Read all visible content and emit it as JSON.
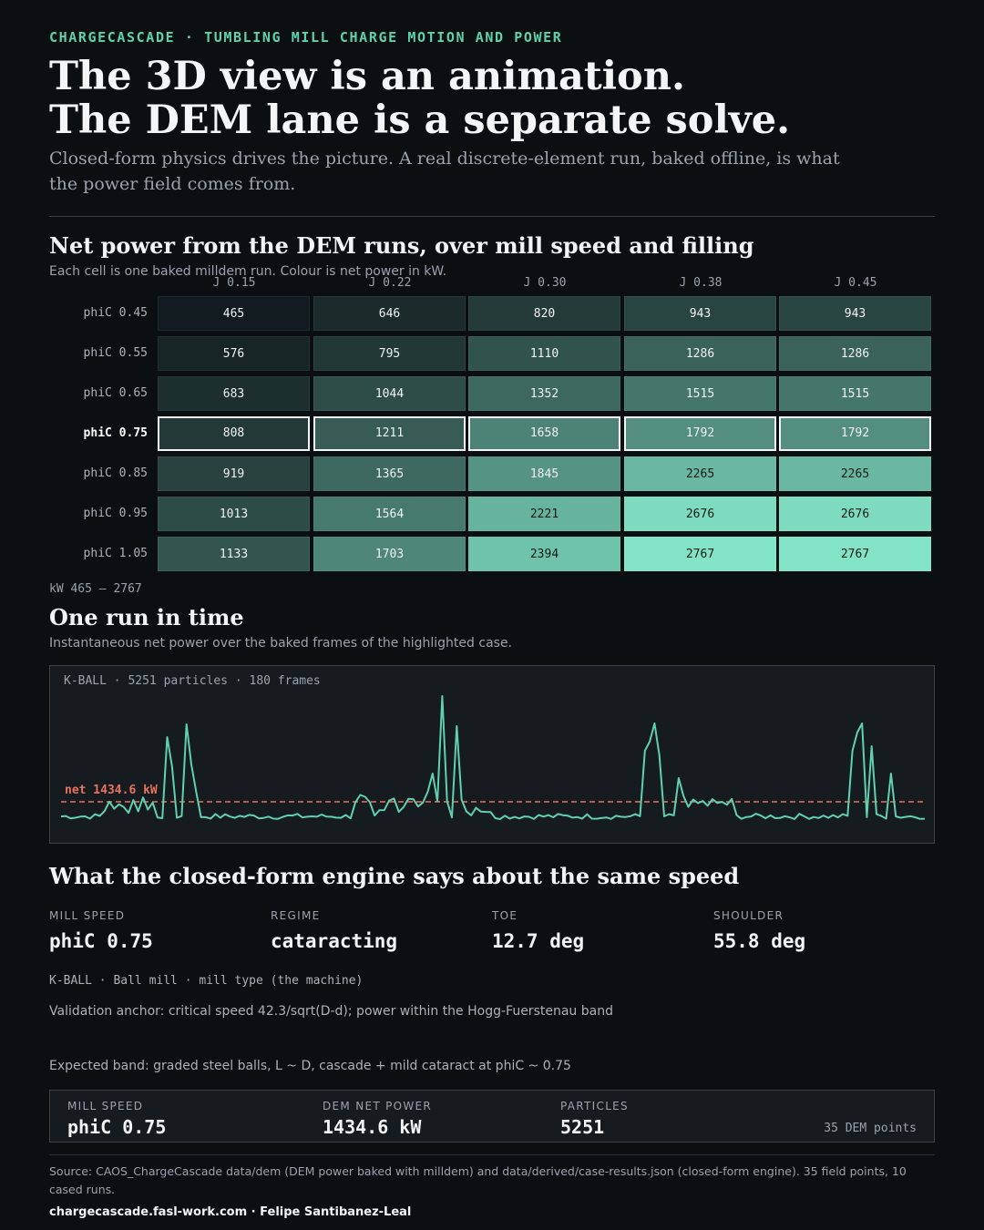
{
  "header": {
    "kicker": "CHARGECASCADE · TUMBLING MILL CHARGE MOTION AND POWER",
    "headline_1": "The 3D view is an animation.",
    "headline_2": "The DEM lane is a separate solve.",
    "lede": "Closed-form physics drives the picture. A real discrete-element run, baked offline, is what the power field comes from."
  },
  "heatmap": {
    "title": "Net power from the DEM runs, over mill speed and filling",
    "subtitle": "Each cell is one baked milldem run. Colour is net power in kW.",
    "columns": [
      "J 0.15",
      "J 0.22",
      "J 0.30",
      "J 0.38",
      "J 0.45"
    ],
    "rows": [
      {
        "label": "phiC 0.45",
        "values": [
          465,
          646,
          820,
          943,
          943
        ],
        "highlight": false
      },
      {
        "label": "phiC 0.55",
        "values": [
          576,
          795,
          1110,
          1286,
          1286
        ],
        "highlight": false
      },
      {
        "label": "phiC 0.65",
        "values": [
          683,
          1044,
          1352,
          1515,
          1515
        ],
        "highlight": false
      },
      {
        "label": "phiC 0.75",
        "values": [
          808,
          1211,
          1658,
          1792,
          1792
        ],
        "highlight": true
      },
      {
        "label": "phiC 0.85",
        "values": [
          919,
          1365,
          1845,
          2265,
          2265
        ],
        "highlight": false
      },
      {
        "label": "phiC 0.95",
        "values": [
          1013,
          1564,
          2221,
          2676,
          2676
        ],
        "highlight": false
      },
      {
        "label": "phiC 1.05",
        "values": [
          1133,
          1703,
          2394,
          2767,
          2767
        ],
        "highlight": false
      }
    ],
    "min": 465,
    "max": 2767,
    "range_label": "kW 465 – 2767",
    "color_low": "#121b1f",
    "color_high": "#82e3c6"
  },
  "timeseries": {
    "title": "One run in time",
    "subtitle": "Instantaneous net power over the baked frames of the highlighted case.",
    "panel_label": "K-BALL · 5251 particles · 180 frames",
    "net_label": "net 1434.6 kW",
    "net_value": 1434.6,
    "line_color": "#5fd1b0",
    "net_color": "#e8735f"
  },
  "engine": {
    "title": "What the closed-form engine says about the same speed",
    "stats": [
      {
        "label": "MILL SPEED",
        "value": "phiC 0.75"
      },
      {
        "label": "REGIME",
        "value": "cataracting"
      },
      {
        "label": "TOE",
        "value": "12.7 deg"
      },
      {
        "label": "SHOULDER",
        "value": "55.8 deg"
      }
    ],
    "machine_line": "K-BALL · Ball mill · mill type (the machine)",
    "validation": "Validation anchor: critical speed 42.3/sqrt(D-d); power within the Hogg-Fuerstenau band",
    "expected": "Expected band: graded steel balls, L ~ D, cascade + mild cataract at phiC ~ 0.75"
  },
  "summary": {
    "mill_speed_label": "MILL SPEED",
    "mill_speed_value": "phiC 0.75",
    "power_label": "DEM NET POWER",
    "power_value": "1434.6 kW",
    "particles_label": "PARTICLES",
    "particles_value": "5251",
    "points_note": "35 DEM points"
  },
  "footer": {
    "source": "Source: CAOS_ChargeCascade data/dem (DEM power baked with milldem) and data/derived/case-results.json (closed-form engine). 35 field points, 10 cased runs.",
    "credit": "chargecascade.fasl-work.com · Felipe Santibanez-Leal"
  }
}
